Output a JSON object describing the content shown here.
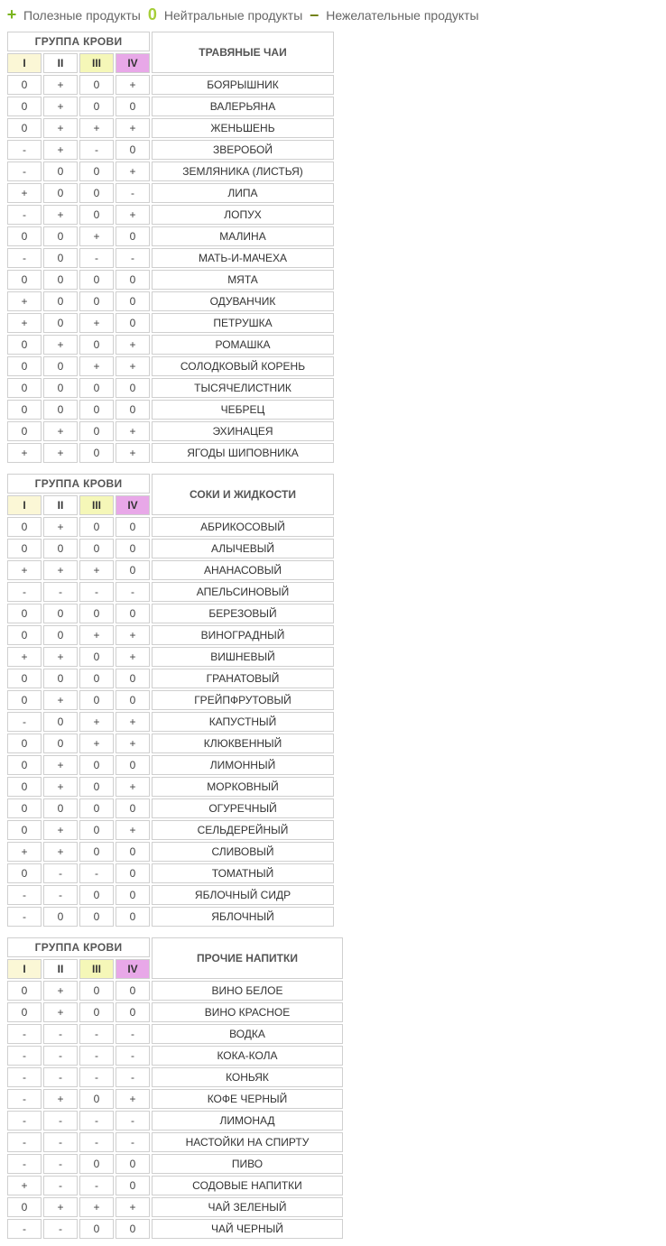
{
  "legend": {
    "plus": {
      "symbol": "+",
      "label": "Полезные продукты"
    },
    "zero": {
      "symbol": "0",
      "label": "Нейтральные продукты"
    },
    "minus": {
      "symbol": "–",
      "label": "Нежелательные продукты"
    }
  },
  "common": {
    "group_header": "ГРУППА КРОВИ",
    "columns": [
      "I",
      "II",
      "III",
      "IV"
    ]
  },
  "column_header_colors": {
    "I": "#fbf7d6",
    "II": "#ffffff",
    "III": "#f5f7b8",
    "IV": "#e8a8e8"
  },
  "border_color": "#cfcfcf",
  "tables": [
    {
      "id": "herbal-teas",
      "title": "ТРАВЯНЫЕ ЧАИ",
      "name_col_width": 180,
      "rows": [
        {
          "v": [
            "0",
            "+",
            "0",
            "+"
          ],
          "name": "БОЯРЫШНИК"
        },
        {
          "v": [
            "0",
            "+",
            "0",
            "0"
          ],
          "name": "ВАЛЕРЬЯНА"
        },
        {
          "v": [
            "0",
            "+",
            "+",
            "+"
          ],
          "name": "ЖЕНЬШЕНЬ"
        },
        {
          "v": [
            "-",
            "+",
            "-",
            "0"
          ],
          "name": "ЗВЕРОБОЙ"
        },
        {
          "v": [
            "-",
            "0",
            "0",
            "+"
          ],
          "name": "ЗЕМЛЯНИКА (ЛИСТЬЯ)"
        },
        {
          "v": [
            "+",
            "0",
            "0",
            "-"
          ],
          "name": "ЛИПА"
        },
        {
          "v": [
            "-",
            "+",
            "0",
            "+"
          ],
          "name": "ЛОПУХ"
        },
        {
          "v": [
            "0",
            "0",
            "+",
            "0"
          ],
          "name": "МАЛИНА"
        },
        {
          "v": [
            "-",
            "0",
            "-",
            "-"
          ],
          "name": "МАТЬ-И-МАЧЕХА"
        },
        {
          "v": [
            "0",
            "0",
            "0",
            "0"
          ],
          "name": "МЯТА"
        },
        {
          "v": [
            "+",
            "0",
            "0",
            "0"
          ],
          "name": "ОДУВАНЧИК"
        },
        {
          "v": [
            "+",
            "0",
            "+",
            "0"
          ],
          "name": "ПЕТРУШКА"
        },
        {
          "v": [
            "0",
            "+",
            "0",
            "+"
          ],
          "name": "РОМАШКА"
        },
        {
          "v": [
            "0",
            "0",
            "+",
            "+"
          ],
          "name": "СОЛОДКОВЫЙ КОРЕНЬ"
        },
        {
          "v": [
            "0",
            "0",
            "0",
            "0"
          ],
          "name": "ТЫСЯЧЕЛИСТНИК"
        },
        {
          "v": [
            "0",
            "0",
            "0",
            "0"
          ],
          "name": "ЧЕБРЕЦ"
        },
        {
          "v": [
            "0",
            "+",
            "0",
            "+"
          ],
          "name": "ЭХИНАЦЕЯ"
        },
        {
          "v": [
            "+",
            "+",
            "0",
            "+"
          ],
          "name": "ЯГОДЫ ШИПОВНИКА"
        }
      ]
    },
    {
      "id": "juices",
      "title": "СОКИ И ЖИДКОСТИ",
      "name_col_width": 180,
      "rows": [
        {
          "v": [
            "0",
            "+",
            "0",
            "0"
          ],
          "name": "АБРИКОСОВЫЙ"
        },
        {
          "v": [
            "0",
            "0",
            "0",
            "0"
          ],
          "name": "АЛЫЧЕВЫЙ"
        },
        {
          "v": [
            "+",
            "+",
            "+",
            "0"
          ],
          "name": "АНАНАСОВЫЙ"
        },
        {
          "v": [
            "-",
            "-",
            "-",
            "-"
          ],
          "name": "АПЕЛЬСИНОВЫЙ"
        },
        {
          "v": [
            "0",
            "0",
            "0",
            "0"
          ],
          "name": "БЕРЕЗОВЫЙ"
        },
        {
          "v": [
            "0",
            "0",
            "+",
            "+"
          ],
          "name": "ВИНОГРАДНЫЙ"
        },
        {
          "v": [
            "+",
            "+",
            "0",
            "+"
          ],
          "name": "ВИШНЕВЫЙ"
        },
        {
          "v": [
            "0",
            "0",
            "0",
            "0"
          ],
          "name": "ГРАНАТОВЫЙ"
        },
        {
          "v": [
            "0",
            "+",
            "0",
            "0"
          ],
          "name": "ГРЕЙПФРУТОВЫЙ"
        },
        {
          "v": [
            "-",
            "0",
            "+",
            "+"
          ],
          "name": "КАПУСТНЫЙ"
        },
        {
          "v": [
            "0",
            "0",
            "+",
            "+"
          ],
          "name": "КЛЮКВЕННЫЙ"
        },
        {
          "v": [
            "0",
            "+",
            "0",
            "0"
          ],
          "name": "ЛИМОННЫЙ"
        },
        {
          "v": [
            "0",
            "+",
            "0",
            "+"
          ],
          "name": "МОРКОВНЫЙ"
        },
        {
          "v": [
            "0",
            "0",
            "0",
            "0"
          ],
          "name": "ОГУРЕЧНЫЙ"
        },
        {
          "v": [
            "0",
            "+",
            "0",
            "+"
          ],
          "name": "СЕЛЬДЕРЕЙНЫЙ"
        },
        {
          "v": [
            "+",
            "+",
            "0",
            "0"
          ],
          "name": "СЛИВОВЫЙ"
        },
        {
          "v": [
            "0",
            "-",
            "-",
            "0"
          ],
          "name": "ТОМАТНЫЙ"
        },
        {
          "v": [
            "-",
            "-",
            "0",
            "0"
          ],
          "name": "ЯБЛОЧНЫЙ СИДР"
        },
        {
          "v": [
            "-",
            "0",
            "0",
            "0"
          ],
          "name": "ЯБЛОЧНЫЙ"
        }
      ]
    },
    {
      "id": "other-drinks",
      "title": "ПРОЧИЕ НАПИТКИ",
      "name_col_width": 190,
      "rows": [
        {
          "v": [
            "0",
            "+",
            "0",
            "0"
          ],
          "name": "ВИНО БЕЛОЕ"
        },
        {
          "v": [
            "0",
            "+",
            "0",
            "0"
          ],
          "name": "ВИНО КРАСНОЕ"
        },
        {
          "v": [
            "-",
            "-",
            "-",
            "-"
          ],
          "name": "ВОДКА"
        },
        {
          "v": [
            "-",
            "-",
            "-",
            "-"
          ],
          "name": "КОКА-КОЛА"
        },
        {
          "v": [
            "-",
            "-",
            "-",
            "-"
          ],
          "name": "КОНЬЯК"
        },
        {
          "v": [
            "-",
            "+",
            "0",
            "+"
          ],
          "name": "КОФЕ ЧЕРНЫЙ"
        },
        {
          "v": [
            "-",
            "-",
            "-",
            "-"
          ],
          "name": "ЛИМОНАД"
        },
        {
          "v": [
            "-",
            "-",
            "-",
            "-"
          ],
          "name": "НАСТОЙКИ НА СПИРТУ"
        },
        {
          "v": [
            "-",
            "-",
            "0",
            "0"
          ],
          "name": "ПИВО"
        },
        {
          "v": [
            "+",
            "-",
            "-",
            "0"
          ],
          "name": "СОДОВЫЕ НАПИТКИ"
        },
        {
          "v": [
            "0",
            "+",
            "+",
            "+"
          ],
          "name": "ЧАЙ ЗЕЛЕНЫЙ"
        },
        {
          "v": [
            "-",
            "-",
            "0",
            "0"
          ],
          "name": "ЧАЙ ЧЕРНЫЙ"
        }
      ]
    }
  ]
}
